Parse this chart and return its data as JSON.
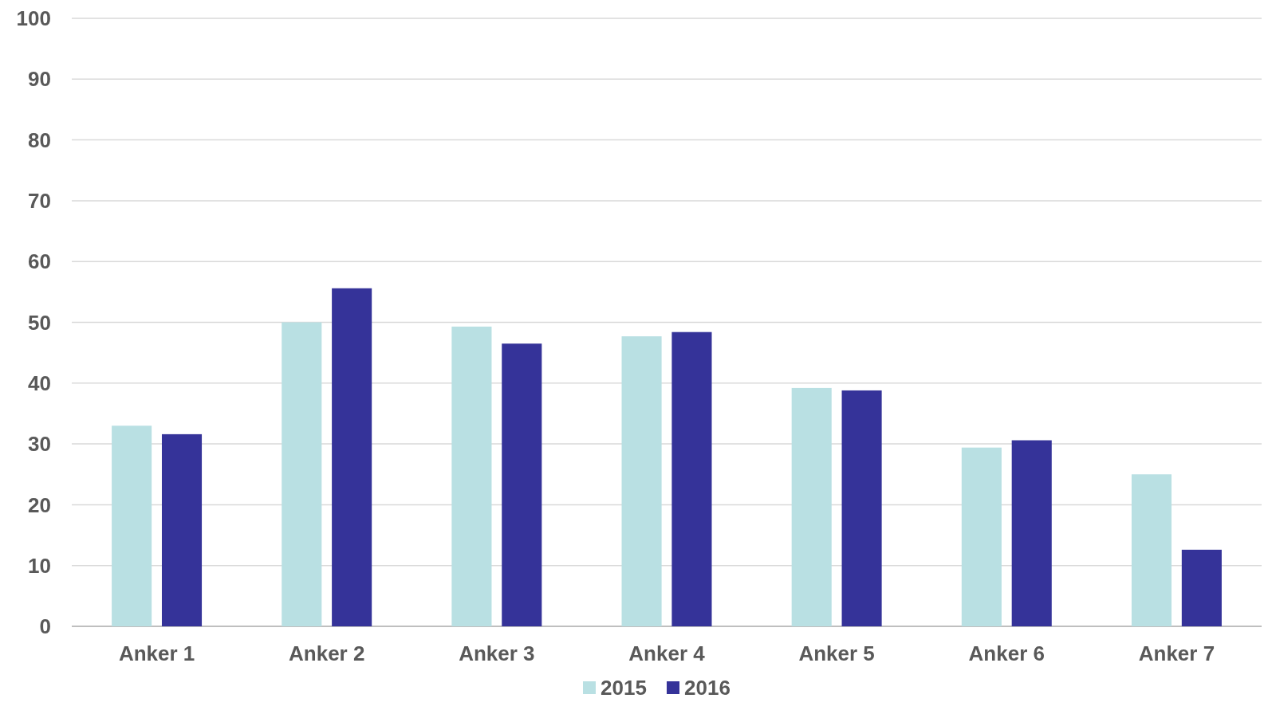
{
  "chart_data": {
    "type": "bar",
    "categories": [
      "Anker 1",
      "Anker 2",
      "Anker 3",
      "Anker 4",
      "Anker 5",
      "Anker 6",
      "Anker 7"
    ],
    "series": [
      {
        "name": "2015",
        "color": "#b9e0e3",
        "values": [
          33.0,
          50.0,
          49.3,
          47.7,
          39.2,
          29.4,
          25.0
        ]
      },
      {
        "name": "2016",
        "color": "#353399",
        "values": [
          31.6,
          55.6,
          46.5,
          48.4,
          38.8,
          30.6,
          12.6
        ]
      }
    ],
    "ylim": [
      0,
      100
    ],
    "yticks": [
      0,
      10,
      20,
      30,
      40,
      50,
      60,
      70,
      80,
      90,
      100
    ],
    "grid": "y",
    "legend": "bottom"
  }
}
